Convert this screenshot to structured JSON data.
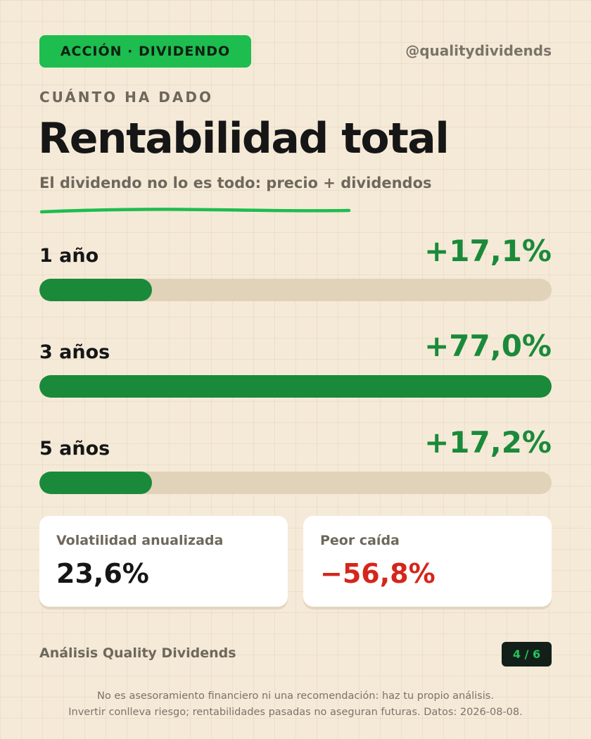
{
  "header": {
    "badge": "ACCIÓN · DIVIDENDO",
    "handle": "@qualitydividends"
  },
  "kicker": "CUÁNTO HA DADO",
  "title": "Rentabilidad total",
  "subtitle": "El dividendo no lo es todo: precio + dividendos",
  "returns": [
    {
      "label": "1 año",
      "value": "+17,1%",
      "fill_percent": 22
    },
    {
      "label": "3 años",
      "value": "+77,0%",
      "fill_percent": 100
    },
    {
      "label": "5 años",
      "value": "+17,2%",
      "fill_percent": 22
    }
  ],
  "stats": {
    "volatility": {
      "label": "Volatilidad anualizada",
      "value": "23,6%"
    },
    "drawdown": {
      "label": "Peor caída",
      "value": "−56,8%"
    }
  },
  "footer": {
    "source": "Análisis Quality Dividends",
    "page": "4 / 6",
    "disclaimer_line1": "No es asesoramiento financiero ni una recomendación: haz tu propio análisis.",
    "disclaimer_line2": "Invertir conlleva riesgo; rentabilidades pasadas no aseguran futuras. Datos: 2026-08-08."
  },
  "colors": {
    "accent_green": "#1ebd4f",
    "bar_green": "#1a8a3a",
    "negative_red": "#d4261c",
    "background": "#f5ead8"
  }
}
